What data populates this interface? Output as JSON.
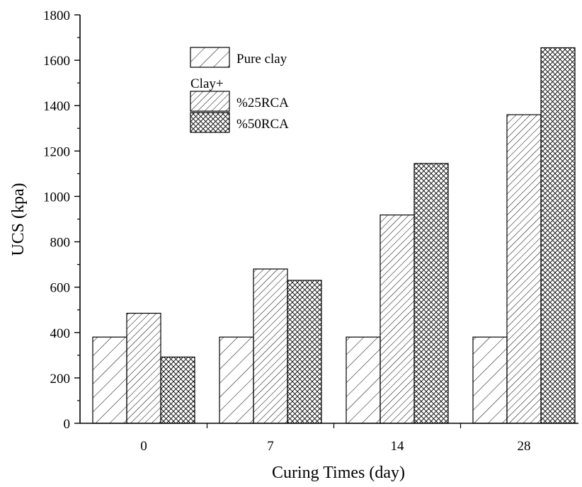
{
  "chart_data": {
    "type": "bar",
    "xlabel": "Curing Times (day)",
    "ylabel": "UCS (kpa)",
    "ylim": [
      0,
      1800
    ],
    "yticks": [
      0,
      200,
      400,
      600,
      800,
      1000,
      1200,
      1400,
      1600,
      1800
    ],
    "categories": [
      "0",
      "7",
      "14",
      "28"
    ],
    "series": [
      {
        "name": "Pure clay",
        "pattern": "single-hatch-light",
        "values": [
          380,
          380,
          380,
          380
        ]
      },
      {
        "name": "%25RCA",
        "pattern": "single-hatch-dense",
        "values": [
          485,
          680,
          918,
          1360
        ]
      },
      {
        "name": "%50RCA",
        "pattern": "cross-hatch",
        "values": [
          292,
          630,
          1145,
          1655
        ]
      }
    ],
    "legend": {
      "placement": "top-left",
      "group_label": "Clay+"
    },
    "grid": false,
    "colors": {
      "stroke": "#000000",
      "background": "#ffffff"
    }
  }
}
